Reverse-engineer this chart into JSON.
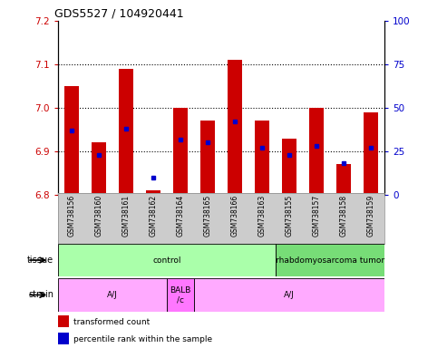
{
  "title": "GDS5527 / 104920441",
  "samples": [
    "GSM738156",
    "GSM738160",
    "GSM738161",
    "GSM738162",
    "GSM738164",
    "GSM738165",
    "GSM738166",
    "GSM738163",
    "GSM738155",
    "GSM738157",
    "GSM738158",
    "GSM738159"
  ],
  "bar_bottom": 6.8,
  "bar_tops": [
    7.05,
    6.92,
    7.09,
    6.81,
    7.0,
    6.97,
    7.11,
    6.97,
    6.93,
    7.0,
    6.87,
    6.99
  ],
  "percentile_ranks": [
    37,
    23,
    38,
    10,
    32,
    30,
    42,
    27,
    23,
    28,
    18,
    27
  ],
  "bar_color": "#cc0000",
  "dot_color": "#0000cc",
  "ylim_left": [
    6.8,
    7.2
  ],
  "ylim_right": [
    0,
    100
  ],
  "yticks_left": [
    6.8,
    6.9,
    7.0,
    7.1,
    7.2
  ],
  "yticks_right": [
    0,
    25,
    50,
    75,
    100
  ],
  "tissue_groups": [
    {
      "label": "control",
      "start": 0,
      "end": 8,
      "color": "#aaffaa"
    },
    {
      "label": "rhabdomyosarcoma tumor",
      "start": 8,
      "end": 12,
      "color": "#77dd77"
    }
  ],
  "strain_groups": [
    {
      "label": "A/J",
      "start": 0,
      "end": 4,
      "color": "#ffaaff"
    },
    {
      "label": "BALB\n/c",
      "start": 4,
      "end": 5,
      "color": "#ff77ff"
    },
    {
      "label": "A/J",
      "start": 5,
      "end": 12,
      "color": "#ffaaff"
    }
  ],
  "legend_items": [
    {
      "label": "transformed count",
      "color": "#cc0000"
    },
    {
      "label": "percentile rank within the sample",
      "color": "#0000cc"
    }
  ],
  "axis_label_color_left": "#cc0000",
  "axis_label_color_right": "#0000cc",
  "label_bg_color": "#cccccc",
  "label_border_color": "#aaaaaa"
}
